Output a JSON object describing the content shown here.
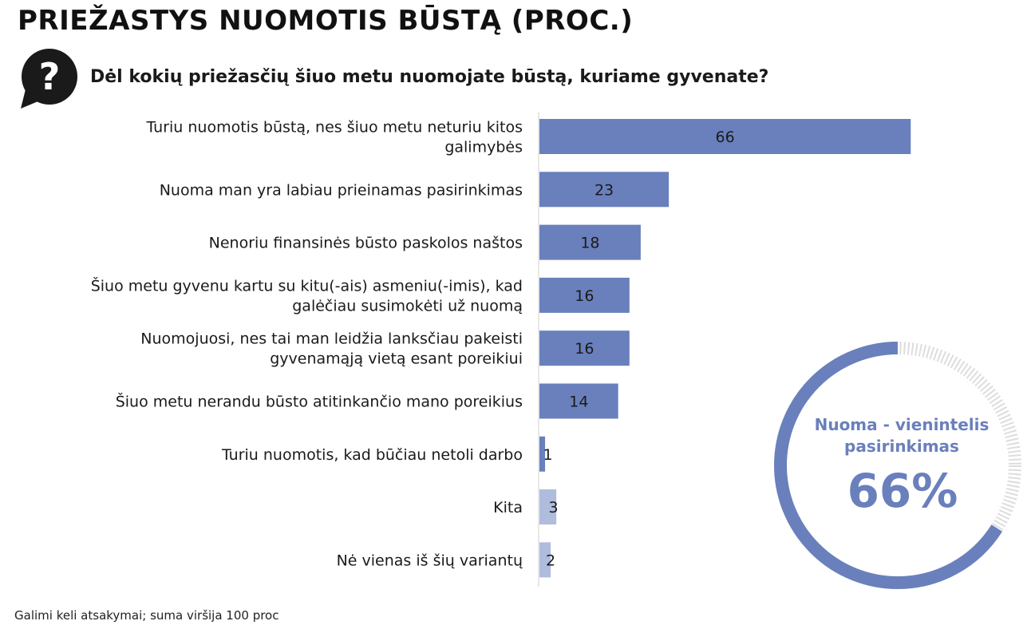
{
  "header": {
    "title": "PRIEŽASTYS NUOMOTIS BŪSTĄ (PROC.)",
    "question": "Dėl kokių priežasčių šiuo metu nuomojate būstą, kuriame gyvenate?",
    "question_icon": "question-bubble-icon"
  },
  "chart_data": {
    "type": "bar",
    "orientation": "horizontal",
    "title": "PRIEŽASTYS NUOMOTIS BŪSTĄ (PROC.)",
    "subtitle": "Dėl kokių priežasčių šiuo metu nuomojate būstą, kuriame gyvenate?",
    "categories": [
      [
        "Turiu nuomotis būstą, nes šiuo metu neturiu kitos",
        "galimybės"
      ],
      [
        "Nuoma man yra labiau prieinamas pasirinkimas"
      ],
      [
        "Nenoriu finansinės būsto paskolos naštos"
      ],
      [
        "Šiuo metu gyvenu kartu su kitu(-ais) asmeniu(-imis), kad",
        "galėčiau susimokėti už nuomą"
      ],
      [
        "Nuomojuosi, nes tai man leidžia lanksčiau pakeisti",
        "gyvenamąją vietą esant poreikiui"
      ],
      [
        "Šiuo metu nerandu būsto atitinkančio mano poreikius"
      ],
      [
        "Turiu nuomotis, kad būčiau netoli darbo"
      ],
      [
        "Kita"
      ],
      [
        "Nė vienas iš šių variantų"
      ]
    ],
    "values": [
      66,
      23,
      18,
      16,
      16,
      14,
      1,
      3,
      2
    ],
    "bar_colors": [
      "#6a80bc",
      "#6a80bc",
      "#6a80bc",
      "#6a80bc",
      "#6a80bc",
      "#6a80bc",
      "#6a80bc",
      "#b0bcdc",
      "#b0bcdc"
    ],
    "xlim": [
      0,
      100
    ],
    "grid": false,
    "legend": "none",
    "callout": {
      "label_lines": [
        "Nuoma - vienintelis",
        "pasirinkimas"
      ],
      "value": 66,
      "value_text": "66%",
      "fill_color": "#6a80bc",
      "rest_color": "#dddddd"
    }
  },
  "footnote": "Galimi keli atsakymai; suma viršija 100 proc"
}
